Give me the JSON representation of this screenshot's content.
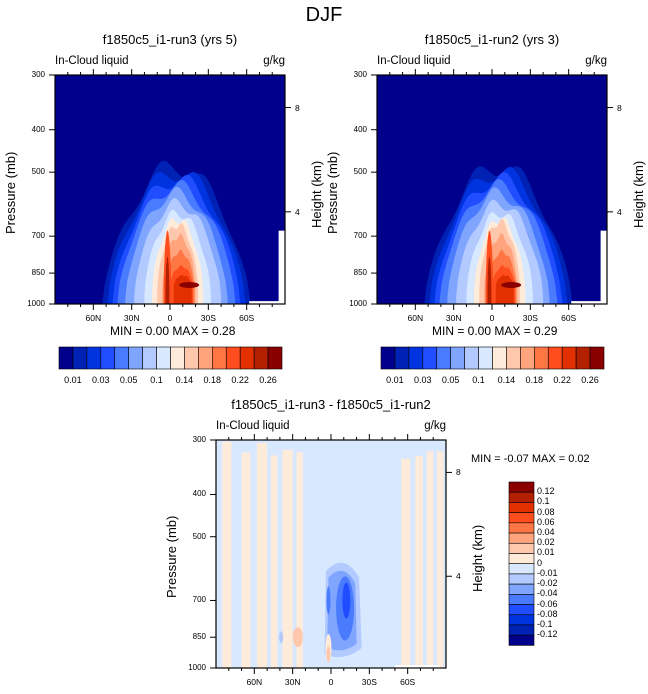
{
  "figure": {
    "title": "DJF"
  },
  "chart_data": [
    {
      "type": "heatmap",
      "panel": "top-left",
      "title": "f1850c5_i1-run3 (yrs 5)",
      "left_subtitle": "In-Cloud liquid",
      "right_subtitle": "g/kg",
      "ylabel": "Pressure (mb)",
      "ylabel_right": "Height (km)",
      "x_ticks": [
        "60N",
        "30N",
        "0",
        "30S",
        "60S"
      ],
      "y_ticks": [
        "300",
        "400",
        "500",
        "700",
        "850",
        "1000"
      ],
      "y_right_ticks": [
        "8",
        "4"
      ],
      "ylim": [
        1000,
        300
      ],
      "stats": {
        "min_label": "MIN =",
        "min": "0.00",
        "max_label": "MAX =",
        "max": "0.28"
      },
      "colorbar": {
        "orientation": "horizontal",
        "labels": [
          "0.01",
          "0.03",
          "0.05",
          "0.1",
          "0.14",
          "0.18",
          "0.22",
          "0.26"
        ],
        "levels": [
          0.01,
          0.02,
          0.03,
          0.04,
          0.05,
          0.06,
          0.1,
          0.12,
          0.14,
          0.16,
          0.18,
          0.2,
          0.22,
          0.24,
          0.26
        ],
        "colors": [
          "#00008c",
          "#0022b4",
          "#0033e0",
          "#1f4dff",
          "#4a7bff",
          "#7fa5ff",
          "#b2caff",
          "#d8e8ff",
          "#ffebd9",
          "#ffc8ad",
          "#ffa47c",
          "#ff7645",
          "#ff4d1d",
          "#e33000",
          "#b32000",
          "#8a0000"
        ]
      },
      "features": "Liquid concentrated below 500 mb between ~45N and ~50S, maxima near 900 mb at equator and ~10S (~0.28)"
    },
    {
      "type": "heatmap",
      "panel": "top-right",
      "title": "f1850c5_i1-run2 (yrs 3)",
      "left_subtitle": "In-Cloud liquid",
      "right_subtitle": "g/kg",
      "ylabel": "Pressure (mb)",
      "ylabel_right": "Height (km)",
      "x_ticks": [
        "60N",
        "30N",
        "0",
        "30S",
        "60S"
      ],
      "y_ticks": [
        "300",
        "400",
        "500",
        "700",
        "850",
        "1000"
      ],
      "y_right_ticks": [
        "8",
        "4"
      ],
      "ylim": [
        1000,
        300
      ],
      "stats": {
        "min_label": "MIN =",
        "min": "0.00",
        "max_label": "MAX =",
        "max": "0.29"
      },
      "colorbar": {
        "orientation": "horizontal",
        "labels": [
          "0.01",
          "0.03",
          "0.05",
          "0.1",
          "0.14",
          "0.18",
          "0.22",
          "0.26"
        ],
        "levels": [
          0.01,
          0.02,
          0.03,
          0.04,
          0.05,
          0.06,
          0.1,
          0.12,
          0.14,
          0.16,
          0.18,
          0.2,
          0.22,
          0.24,
          0.26
        ],
        "colors": [
          "#00008c",
          "#0022b4",
          "#0033e0",
          "#1f4dff",
          "#4a7bff",
          "#7fa5ff",
          "#b2caff",
          "#d8e8ff",
          "#ffebd9",
          "#ffc8ad",
          "#ffa47c",
          "#ff7645",
          "#ff4d1d",
          "#e33000",
          "#b32000",
          "#8a0000"
        ]
      },
      "features": "Similar structure to run3, broader red core near equator/10S, max ~0.29"
    },
    {
      "type": "heatmap",
      "panel": "bottom",
      "title": "f1850c5_i1-run3 - f1850c5_i1-run2",
      "left_subtitle": "In-Cloud liquid",
      "right_subtitle": "g/kg",
      "ylabel": "Pressure (mb)",
      "ylabel_right": "Height (km)",
      "x_ticks": [
        "60N",
        "30N",
        "0",
        "30S",
        "60S"
      ],
      "y_ticks": [
        "300",
        "400",
        "500",
        "700",
        "850",
        "1000"
      ],
      "y_right_ticks": [
        "8",
        "4"
      ],
      "ylim": [
        1000,
        300
      ],
      "stats": {
        "min_label": "MIN =",
        "min": "-0.07",
        "max_label": "MAX =",
        "max": "0.02"
      },
      "colorbar": {
        "orientation": "vertical",
        "labels": [
          "0.12",
          "0.1",
          "0.08",
          "0.06",
          "0.04",
          "0.02",
          "0.01",
          "0",
          "-0.01",
          "-0.02",
          "-0.04",
          "-0.06",
          "-0.08",
          "-0.1",
          "-0.12"
        ],
        "colors": [
          "#8a0000",
          "#b32000",
          "#e33000",
          "#ff4d1d",
          "#ff7645",
          "#ffa47c",
          "#ffc8ad",
          "#ffebd9",
          "#d8e8ff",
          "#b2caff",
          "#7fa5ff",
          "#4a7bff",
          "#1f4dff",
          "#0033e0",
          "#0022b4",
          "#00008c"
        ]
      },
      "features": "Mostly near zero (light blue/peach); negative anomaly (-0.07) between equator and ~20S, 550-900 mb; small positive near 850 mb at ~25N and ~1000 mb at equator"
    }
  ]
}
